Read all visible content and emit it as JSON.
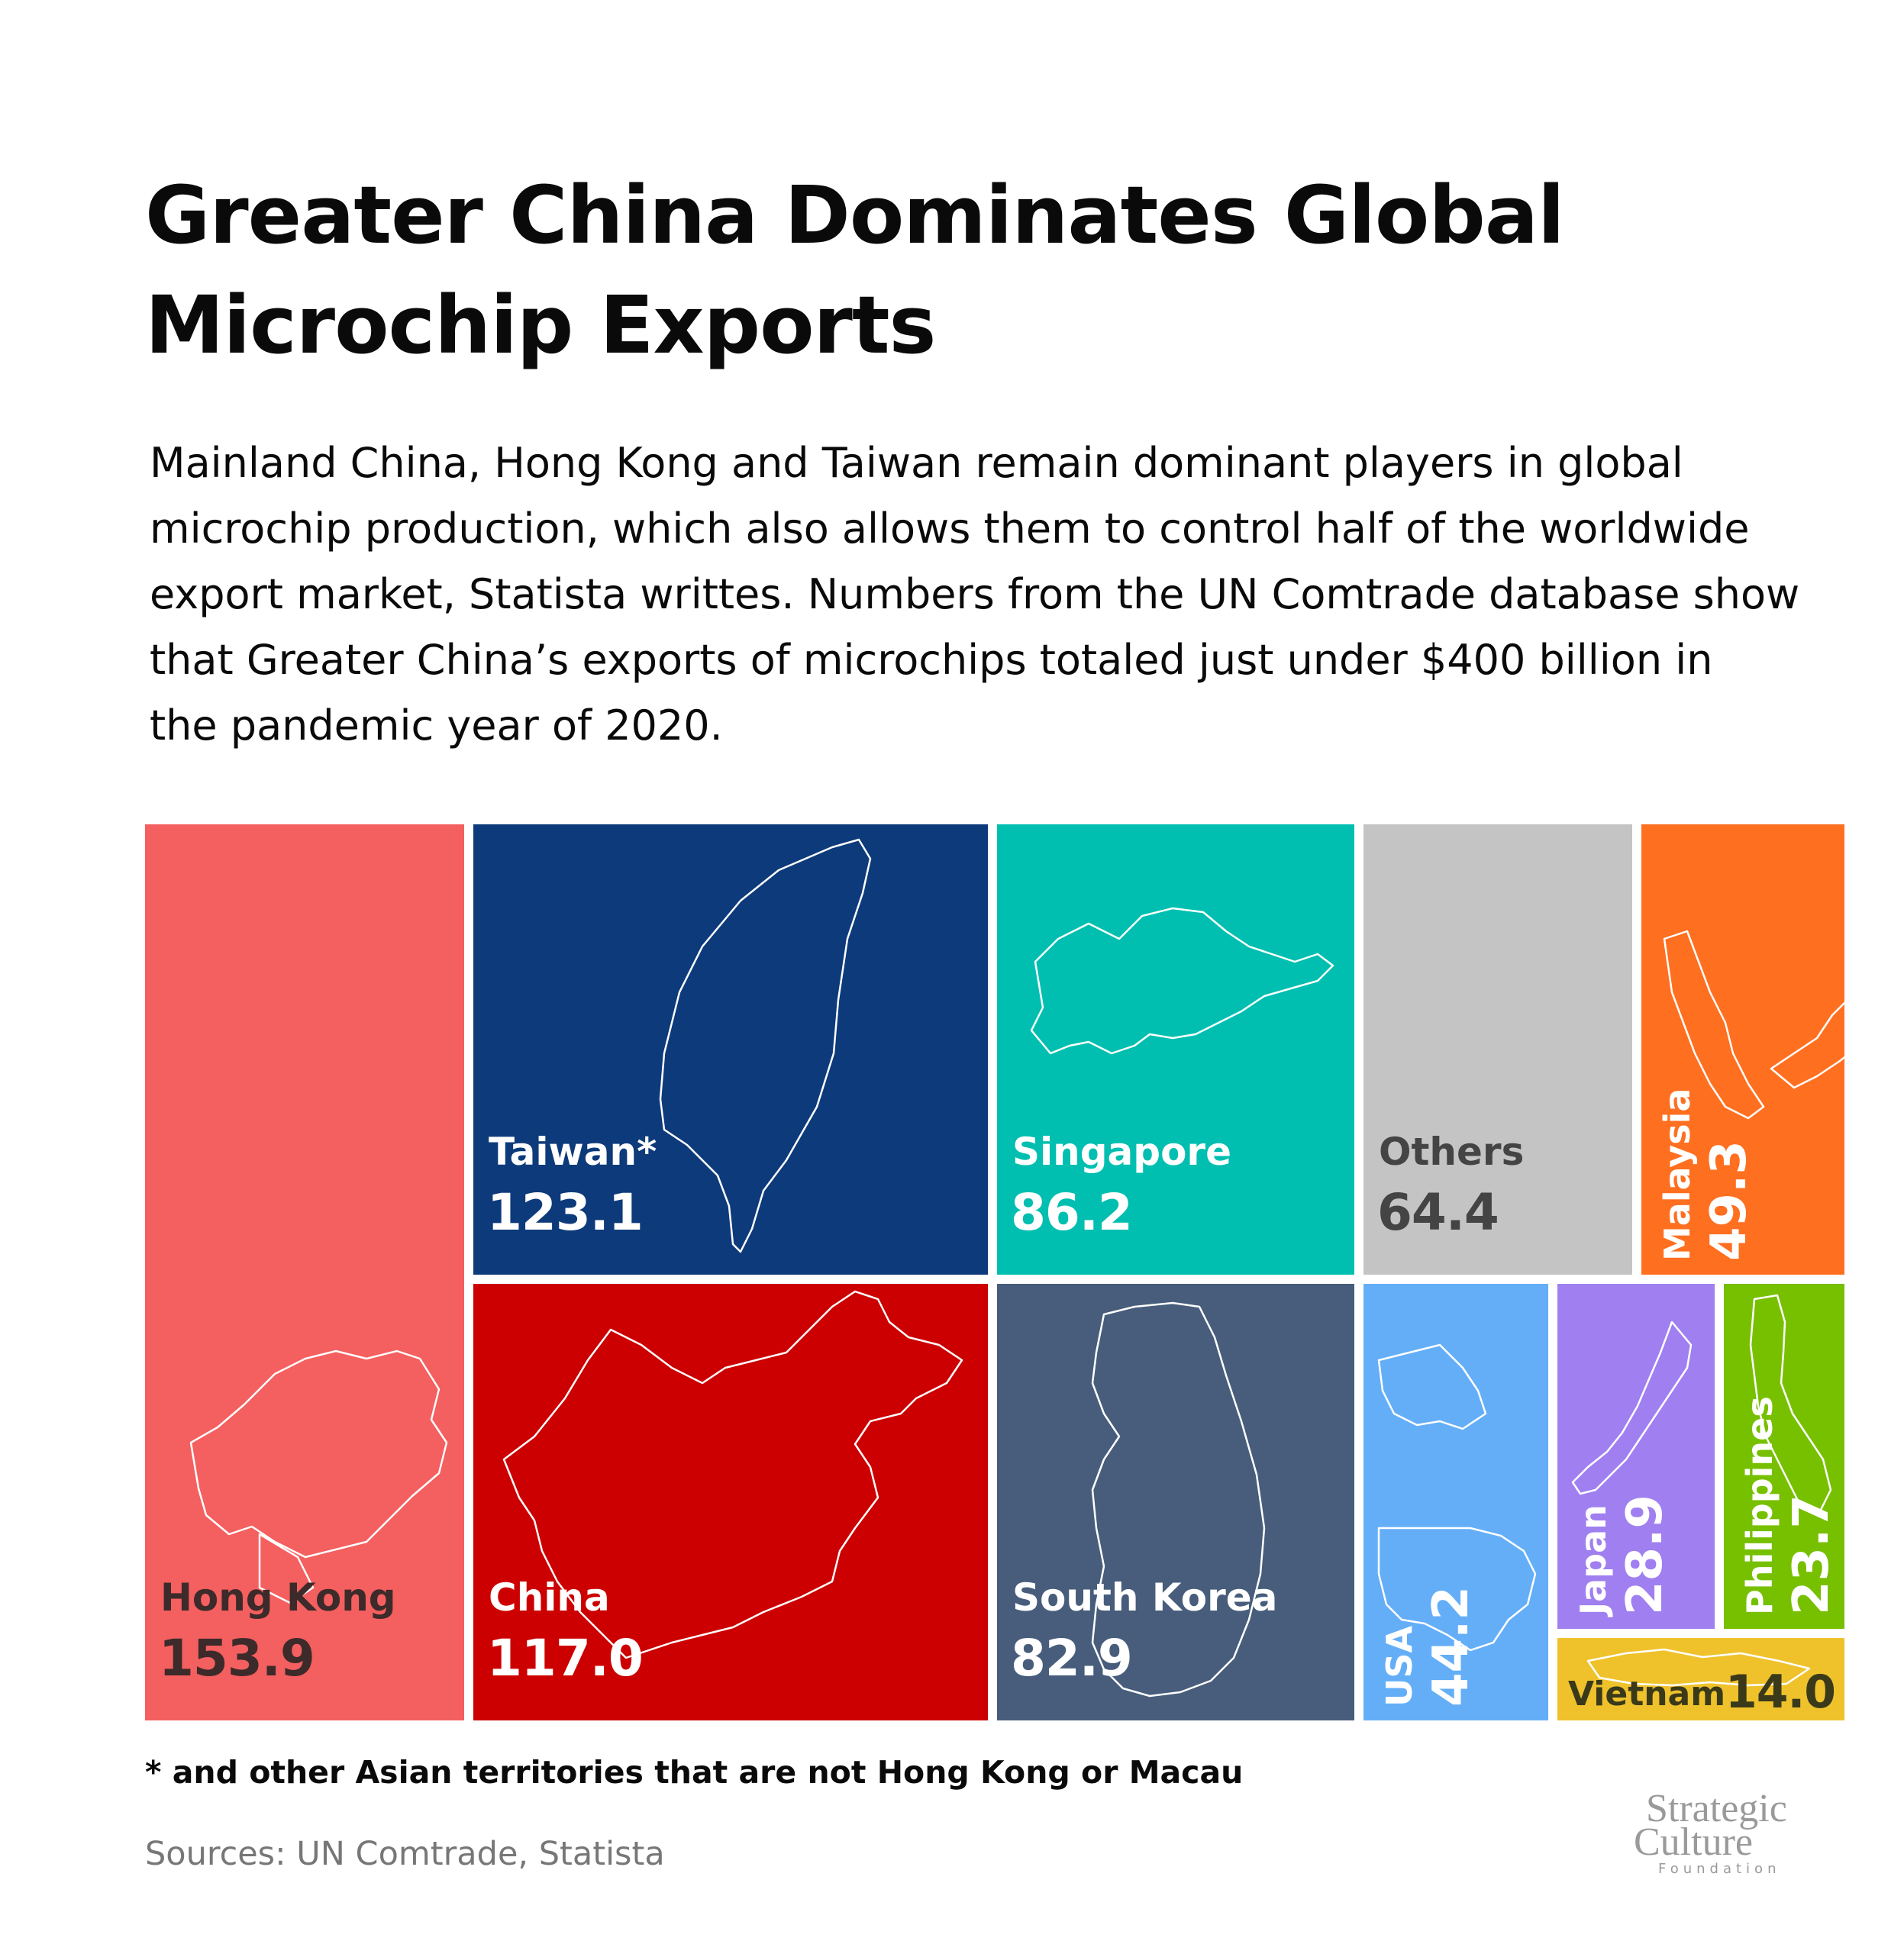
{
  "title_line1": "Greater China Dominates Global",
  "title_line2": "Microchip Exports",
  "subtitle_lines": [
    "Mainland China, Hong Kong and Taiwan remain dominant players in global",
    "microchip production, which also allows them to control half of the worldwide",
    "export market, Statista writtes. Numbers from the UN Comtrade database show",
    "that Greater China’s exports of microchips totaled just under $400 billion in",
    "the pandemic year of 2020."
  ],
  "chart_data": {
    "type": "treemap",
    "items": [
      {
        "name": "Hong Kong",
        "value": 153.9,
        "color": "#f45f5f",
        "text_color": "#3d2a2a"
      },
      {
        "name": "Taiwan*",
        "value": 123.1,
        "color": "#0d3a7a",
        "text_color": "#ffffff"
      },
      {
        "name": "China",
        "value": 117.0,
        "color": "#cc0000",
        "text_color": "#ffffff"
      },
      {
        "name": "Singapore",
        "value": 86.2,
        "color": "#00bfb0",
        "text_color": "#ffffff"
      },
      {
        "name": "South Korea",
        "value": 82.9,
        "color": "#475d7b",
        "text_color": "#ffffff"
      },
      {
        "name": "Others",
        "value": 64.4,
        "color": "#c4c4c4",
        "text_color": "#444444"
      },
      {
        "name": "Malaysia",
        "value": 49.3,
        "color": "#ff6f20",
        "text_color": "#ffffff"
      },
      {
        "name": "USA",
        "value": 44.2,
        "color": "#64aef7",
        "text_color": "#ffffff"
      },
      {
        "name": "Japan",
        "value": 28.9,
        "color": "#a07ff0",
        "text_color": "#ffffff"
      },
      {
        "name": "Philippines",
        "value": 23.7,
        "color": "#77c000",
        "text_color": "#ffffff"
      },
      {
        "name": "Vietnam",
        "value": 14.0,
        "color": "#efc22c",
        "text_color": "#3a3a1a"
      }
    ]
  },
  "footnote": "* and other Asian territories that are not Hong Kong or Macau",
  "sources": "Sources: UN Comtrade, Statista",
  "logo": {
    "line1": "Strategic",
    "line2": "Culture",
    "line3": "Foundation"
  },
  "outline_color": "#ffffff"
}
